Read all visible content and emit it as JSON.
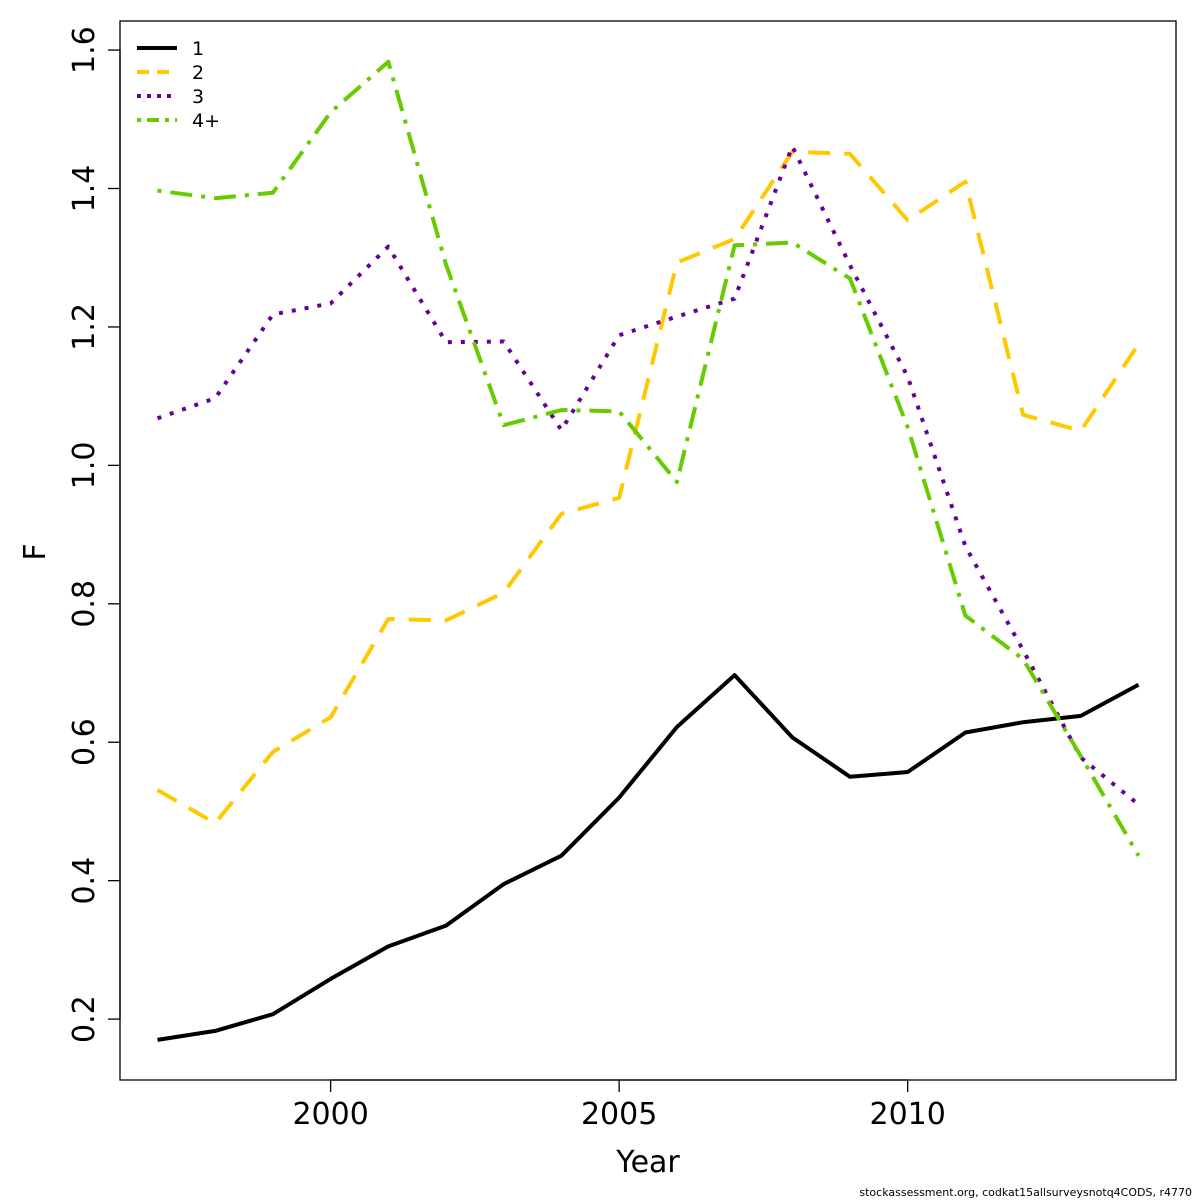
{
  "chart_data": {
    "type": "line",
    "title": "",
    "xlabel": "Year",
    "ylabel": "F",
    "xlim": [
      1996.35,
      2014.65
    ],
    "ylim": [
      0.112,
      1.642
    ],
    "xticks": [
      2000,
      2005,
      2010
    ],
    "xtick_labels": [
      "2000",
      "2005",
      "2010"
    ],
    "yticks": [
      0.2,
      0.4,
      0.6,
      0.8,
      1.0,
      1.2,
      1.4,
      1.6
    ],
    "ytick_labels": [
      "0.2",
      "0.4",
      "0.6",
      "0.8",
      "1.0",
      "1.2",
      "1.4",
      "1.6"
    ],
    "grid": false,
    "legend_position": "top-left",
    "x": [
      1997,
      1998,
      1999,
      2000,
      2001,
      2002,
      2003,
      2004,
      2005,
      2006,
      2007,
      2008,
      2009,
      2010,
      2011,
      2012,
      2013,
      2014
    ],
    "series": [
      {
        "name": "1",
        "color": "#000000",
        "dash": "solid",
        "values": [
          0.17,
          0.183,
          0.207,
          0.258,
          0.305,
          0.335,
          0.395,
          0.436,
          0.52,
          0.622,
          0.697,
          0.607,
          0.55,
          0.557,
          0.614,
          0.629,
          0.638,
          0.683
        ]
      },
      {
        "name": "2",
        "color": "#FFC800",
        "dash": "dashed",
        "values": [
          0.531,
          0.483,
          0.586,
          0.636,
          0.778,
          0.776,
          0.816,
          0.93,
          0.953,
          1.293,
          1.327,
          1.453,
          1.45,
          1.354,
          1.41,
          1.073,
          1.05,
          1.175
        ]
      },
      {
        "name": "3",
        "color": "#660099",
        "dash": "dotted",
        "values": [
          1.068,
          1.097,
          1.218,
          1.234,
          1.316,
          1.178,
          1.179,
          1.051,
          1.188,
          1.215,
          1.241,
          1.461,
          1.289,
          1.128,
          0.883,
          0.733,
          0.578,
          0.51
        ]
      },
      {
        "name": "4+",
        "color": "#66CC00",
        "dash": "dotdash",
        "values": [
          1.397,
          1.386,
          1.394,
          1.51,
          1.583,
          1.29,
          1.058,
          1.08,
          1.078,
          0.976,
          1.318,
          1.322,
          1.27,
          1.055,
          0.783,
          0.72,
          0.58,
          0.436
        ]
      }
    ]
  },
  "footer": {
    "caption": "stockassessment.org, codkat15allsurveysnotq4CODS, r4770"
  }
}
